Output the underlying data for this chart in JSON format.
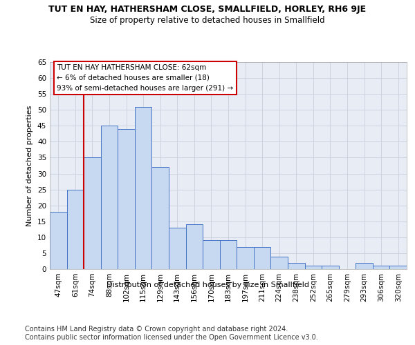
{
  "title": "TUT EN HAY, HATHERSHAM CLOSE, SMALLFIELD, HORLEY, RH6 9JE",
  "subtitle": "Size of property relative to detached houses in Smallfield",
  "xlabel": "Distribution of detached houses by size in Smallfield",
  "ylabel": "Number of detached properties",
  "bar_labels": [
    "47sqm",
    "61sqm",
    "74sqm",
    "88sqm",
    "102sqm",
    "115sqm",
    "129sqm",
    "143sqm",
    "156sqm",
    "170sqm",
    "183sqm",
    "197sqm",
    "211sqm",
    "224sqm",
    "238sqm",
    "252sqm",
    "265sqm",
    "279sqm",
    "293sqm",
    "306sqm",
    "320sqm"
  ],
  "bar_values": [
    18,
    25,
    35,
    45,
    44,
    51,
    32,
    13,
    14,
    9,
    9,
    7,
    7,
    4,
    2,
    1,
    1,
    0,
    2,
    1,
    1
  ],
  "bar_color": "#c6d9f0",
  "bar_edge_color": "#4472c4",
  "property_line_x": 1.5,
  "ylim": [
    0,
    65
  ],
  "yticks": [
    0,
    5,
    10,
    15,
    20,
    25,
    30,
    35,
    40,
    45,
    50,
    55,
    60,
    65
  ],
  "annotation_title": "TUT EN HAY HATHERSHAM CLOSE: 62sqm",
  "annotation_line1": "← 6% of detached houses are smaller (18)",
  "annotation_line2": "93% of semi-detached houses are larger (291) →",
  "annotation_box_edge_color": "#cc0000",
  "footer1": "Contains HM Land Registry data © Crown copyright and database right 2024.",
  "footer2": "Contains public sector information licensed under the Open Government Licence v3.0.",
  "bg_color": "#ffffff",
  "plot_bg_color": "#e8edf5",
  "grid_color": "#c8d0dc",
  "title_fontsize": 9,
  "subtitle_fontsize": 8.5,
  "axis_label_fontsize": 8,
  "tick_fontsize": 7.5,
  "annotation_fontsize": 7.5,
  "footer_fontsize": 7
}
